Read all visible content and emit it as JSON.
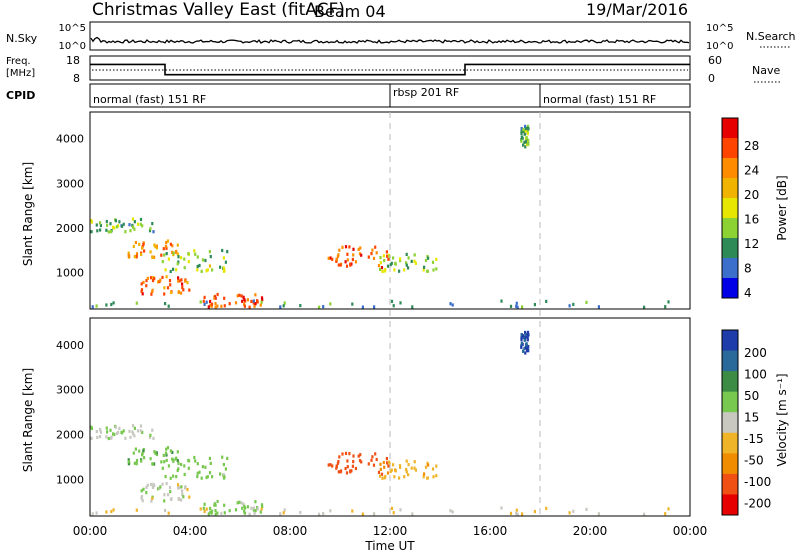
{
  "header": {
    "title": "Christmas Valley East (fitACF)",
    "beam": "Beam 04",
    "date": "19/Mar/2016"
  },
  "nsky_panel": {
    "left_label": "N.Sky",
    "right_label": "N.Search",
    "left_ticks": [
      "10^5",
      "10^0"
    ],
    "right_ticks": [
      "10^5",
      "10^0"
    ]
  },
  "freq_panel": {
    "left_label_line1": "Freq.",
    "left_label_line2": "[MHz]",
    "right_label": "Nave",
    "left_ticks": [
      "18",
      "8"
    ],
    "right_ticks": [
      "60",
      "0"
    ]
  },
  "cpid_panel": {
    "label": "CPID",
    "segments": [
      {
        "start_hour": 0,
        "text": "normal (fast) 151 RF"
      },
      {
        "start_hour": 12,
        "text": "rbsp 201 RF"
      },
      {
        "start_hour": 18,
        "text": "normal (fast) 151 RF"
      }
    ]
  },
  "power_panel": {
    "ylabel": "Slant Range [km]",
    "yticks": [
      "4000",
      "3000",
      "2000",
      "1000"
    ],
    "colorbar_label": "Power [dB]",
    "colorbar_ticks": [
      "28",
      "24",
      "20",
      "16",
      "12",
      "8",
      "4"
    ],
    "colorbar_colors": [
      "#e60000",
      "#ff4400",
      "#ff8c00",
      "#f0b400",
      "#e6e600",
      "#8cd232",
      "#2e8b57",
      "#3c6ecc",
      "#0000e6"
    ]
  },
  "velocity_panel": {
    "ylabel": "Slant Range [km]",
    "yticks": [
      "4000",
      "3000",
      "2000",
      "1000"
    ],
    "colorbar_label": "Velocity [m s⁻¹]",
    "colorbar_ticks": [
      "200",
      "100",
      "50",
      "15",
      "-15",
      "-50",
      "-100",
      "-200"
    ],
    "colorbar_colors": [
      "#1e3caa",
      "#2a6a9a",
      "#3c8c46",
      "#78c850",
      "#c8c8c0",
      "#f0b428",
      "#f08c00",
      "#f05014",
      "#e60000"
    ]
  },
  "time_axis": {
    "xlabel": "Time UT",
    "ticks": [
      "00:00",
      "04:00",
      "08:00",
      "12:00",
      "16:00",
      "20:00",
      "00:00"
    ]
  },
  "chart_data": {
    "type": "heatmap",
    "x_range_hours": [
      0,
      24
    ],
    "y_range_km": [
      180,
      4600
    ],
    "frequency_mhz": [
      {
        "from_hour": 0,
        "to_hour": 3.0,
        "value": 14.5
      },
      {
        "from_hour": 3.0,
        "to_hour": 15.0,
        "value": 10.2
      },
      {
        "from_hour": 15.0,
        "to_hour": 24,
        "value": 14.5
      }
    ],
    "scatter_regions": [
      {
        "t0": 0.0,
        "t1": 2.5,
        "r0": 1900,
        "r1": 2200,
        "power": 10,
        "velocity": 15
      },
      {
        "t0": 1.5,
        "t1": 3.5,
        "r0": 1300,
        "r1": 1700,
        "power": 22,
        "velocity": 40
      },
      {
        "t0": 2.8,
        "t1": 5.5,
        "r0": 1000,
        "r1": 1500,
        "power": 12,
        "velocity": 30
      },
      {
        "t0": 2.0,
        "t1": 4.0,
        "r0": 500,
        "r1": 900,
        "power": 24,
        "velocity": 0
      },
      {
        "t0": 4.5,
        "t1": 7.0,
        "r0": 200,
        "r1": 500,
        "power": 26,
        "velocity": 30
      },
      {
        "t0": 9.5,
        "t1": 12.0,
        "r0": 1100,
        "r1": 1600,
        "power": 26,
        "velocity": -150
      },
      {
        "t0": 11.5,
        "t1": 14.0,
        "r0": 1000,
        "r1": 1400,
        "power": 12,
        "velocity": -40
      },
      {
        "t0": 17.2,
        "t1": 17.5,
        "r0": 3800,
        "r1": 4300,
        "power": 10,
        "velocity": 200
      },
      {
        "t0": 0,
        "t1": 24,
        "r0": 200,
        "r1": 350,
        "power": 8,
        "velocity": -10
      }
    ]
  }
}
